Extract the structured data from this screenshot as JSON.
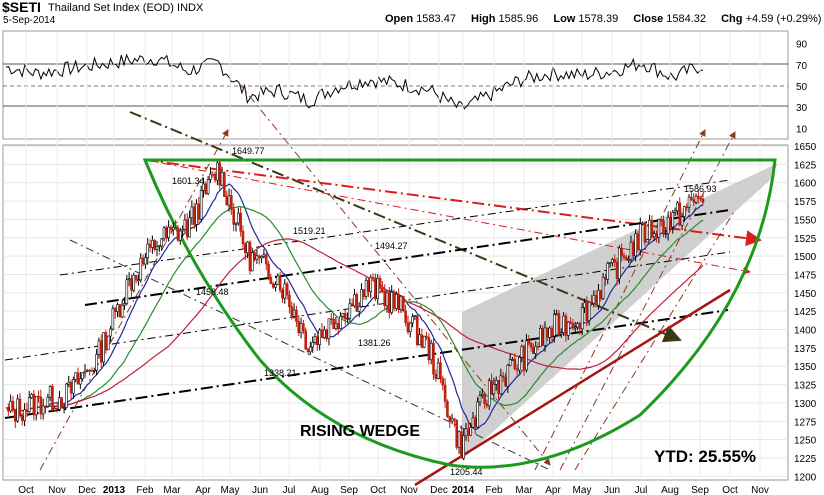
{
  "header": {
    "symbol": "$SETI",
    "name": "Thailand Set Index (EOD)",
    "exchange": "INDX",
    "date": "5-Sep-2014",
    "open_label": "Open",
    "open": "1583.47",
    "high_label": "High",
    "high": "1585.96",
    "low_label": "Low",
    "low": "1578.39",
    "close_label": "Close",
    "close": "1584.32",
    "chg_label": "Chg",
    "chg": "+4.59 (+0.29%)"
  },
  "chart_data": [
    {
      "type": "line",
      "panel": "indicator",
      "y_ticks": [
        "90",
        "70",
        "50",
        "30",
        "10"
      ],
      "ylim": [
        0,
        100
      ],
      "reference_lines": [
        70,
        50,
        30
      ],
      "x": [
        "2012-10",
        "2012-11",
        "2012-12",
        "2013-01",
        "2013-02",
        "2013-03",
        "2013-04",
        "2013-05",
        "2013-06",
        "2013-07",
        "2013-08",
        "2013-09",
        "2013-10",
        "2013-11",
        "2013-12",
        "2014-01",
        "2014-02",
        "2014-03",
        "2014-04",
        "2014-05",
        "2014-06",
        "2014-07",
        "2014-08",
        "2014-09"
      ],
      "values": [
        68,
        62,
        66,
        70,
        74,
        76,
        64,
        72,
        40,
        46,
        36,
        50,
        56,
        52,
        46,
        28,
        42,
        56,
        62,
        60,
        64,
        72,
        58,
        70
      ]
    },
    {
      "type": "line",
      "panel": "price",
      "y_ticks": [
        "1650",
        "1625",
        "1600",
        "1575",
        "1550",
        "1525",
        "1500",
        "1475",
        "1450",
        "1425",
        "1400",
        "1375",
        "1350",
        "1325",
        "1300",
        "1275",
        "1250",
        "1225",
        "1200"
      ],
      "ylim": [
        1195,
        1665
      ],
      "x_ticks": [
        "Oct",
        "Nov",
        "Dec",
        "2013",
        "Feb",
        "Mar",
        "Apr",
        "May",
        "Jun",
        "Jul",
        "Aug",
        "Sep",
        "Oct",
        "Nov",
        "Dec",
        "2014",
        "Feb",
        "Mar",
        "Apr",
        "May",
        "Jun",
        "Jul",
        "Aug",
        "Sep",
        "Oct",
        "Nov"
      ],
      "x": [
        "2012-10",
        "2012-11",
        "2012-12",
        "2013-01",
        "2013-02",
        "2013-03",
        "2013-04",
        "2013-05",
        "2013-06",
        "2013-07",
        "2013-08",
        "2013-09",
        "2013-10",
        "2013-11",
        "2013-12",
        "2014-01",
        "2014-02",
        "2014-03",
        "2014-04",
        "2014-05",
        "2014-06",
        "2014-07",
        "2014-08",
        "2014-09"
      ],
      "series": [
        {
          "values": [
            1285,
            1300,
            1310,
            1360,
            1460,
            1520,
            1540,
            1620,
            1500,
            1470,
            1380,
            1420,
            1460,
            1430,
            1370,
            1240,
            1320,
            1360,
            1400,
            1420,
            1480,
            1530,
            1550,
            1584
          ]
        }
      ],
      "peak_labels": [
        "1649.77",
        "1601.34",
        "1586.93",
        "1519.21",
        "1494.27",
        "1458.48",
        "1381.26",
        "1338.21",
        "1205.44"
      ],
      "annotations": [
        "RISING WEDGE",
        "YTD: 25.55%"
      ]
    }
  ]
}
